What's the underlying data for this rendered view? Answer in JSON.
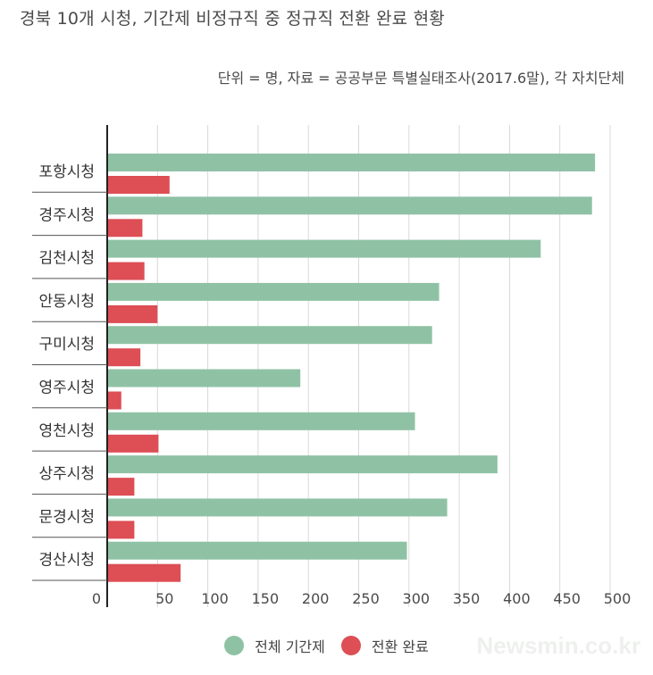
{
  "chart_data": {
    "type": "bar",
    "orientation": "horizontal",
    "title": "경북 10개 시청, 기간제 비정규직 중 정규직 전환 완료 현황",
    "subtitle": "단위 = 명, 자료 = 공공부문 특별실태조사(2017.6말), 각 자치단체",
    "categories": [
      "포항시청",
      "경주시청",
      "김천시청",
      "안동시청",
      "구미시청",
      "영주시청",
      "영천시청",
      "상주시청",
      "문경시청",
      "경산시청"
    ],
    "series": [
      {
        "name": "전체 기간제",
        "color": "#8fc2a5",
        "values": [
          485,
          482,
          431,
          330,
          323,
          192,
          306,
          388,
          338,
          298
        ]
      },
      {
        "name": "전환 완료",
        "color": "#dd4e55",
        "values": [
          62,
          35,
          37,
          50,
          33,
          14,
          51,
          27,
          27,
          73
        ]
      }
    ],
    "xlim": [
      0,
      500
    ],
    "xticks": [
      0,
      50,
      100,
      150,
      200,
      250,
      300,
      350,
      400,
      450,
      500
    ],
    "grid": true,
    "legend_position": "bottom"
  },
  "watermark": "Newsmin.co.kr"
}
